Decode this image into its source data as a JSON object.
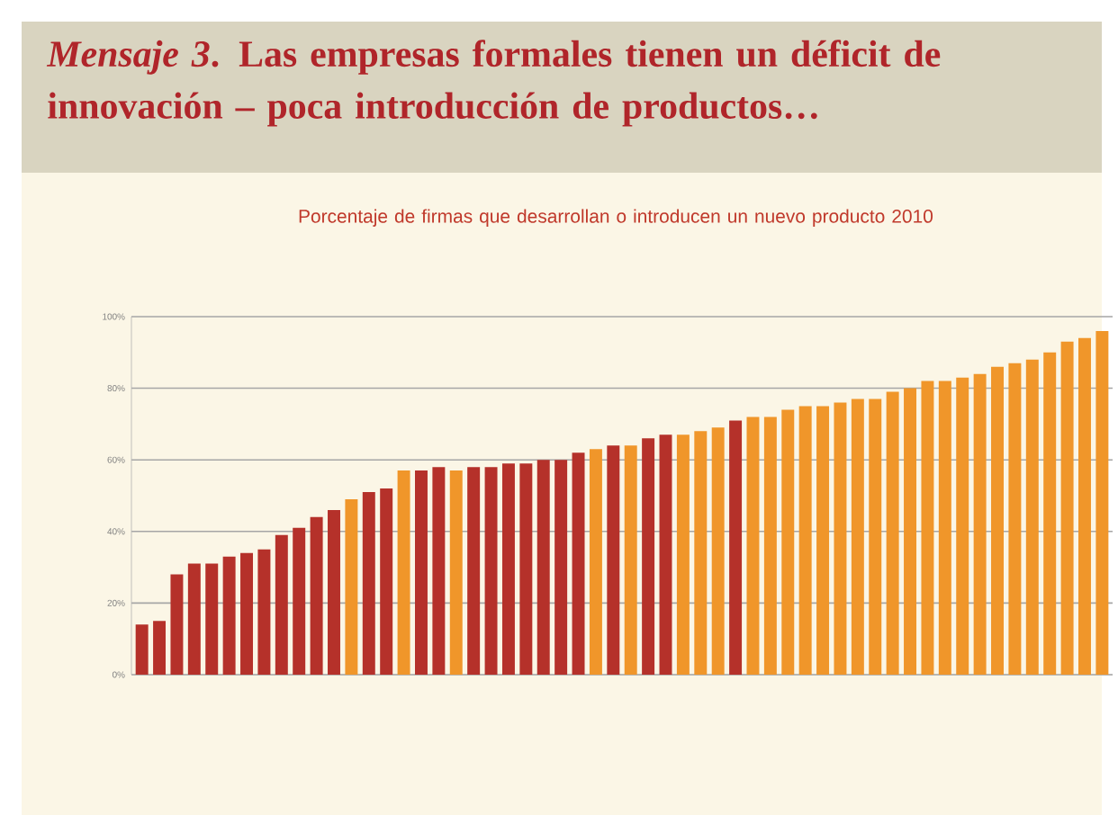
{
  "chart_data": {
    "type": "bar",
    "title": "*Mensaje 3*. Las empresas formales tienen un déficit de innovación – poca introducción de productos…",
    "subtitle": "Porcentaje de firmas que desarrollan o introducen un nuevo producto 2010",
    "categories": [
      null,
      null,
      null,
      null,
      null,
      null,
      null,
      null,
      null,
      null,
      null,
      null,
      null,
      null,
      null,
      null,
      null,
      null,
      null,
      null,
      null,
      null,
      null,
      null,
      null,
      null,
      null,
      null,
      null,
      null,
      null,
      null,
      null,
      null,
      null,
      null,
      null,
      null,
      null,
      null,
      null,
      null,
      null,
      null,
      null,
      null,
      null,
      null,
      null,
      null,
      null,
      null,
      null,
      null,
      null,
      null
    ],
    "values": [
      14,
      15,
      28,
      31,
      31,
      33,
      34,
      35,
      39,
      41,
      44,
      46,
      49,
      51,
      52,
      57,
      57,
      58,
      57,
      58,
      58,
      59,
      59,
      60,
      60,
      62,
      63,
      64,
      64,
      66,
      67,
      67,
      68,
      69,
      71,
      72,
      72,
      74,
      75,
      75,
      76,
      77,
      77,
      79,
      80,
      82,
      82,
      83,
      84,
      86,
      87,
      88,
      90,
      93,
      94,
      96
    ],
    "colors": [
      "#b5312a",
      "#b5312a",
      "#b5312a",
      "#b5312a",
      "#b5312a",
      "#b5312a",
      "#b5312a",
      "#b5312a",
      "#b5312a",
      "#b5312a",
      "#b5312a",
      "#b5312a",
      "#f0962a",
      "#b5312a",
      "#b5312a",
      "#f0962a",
      "#b5312a",
      "#b5312a",
      "#f0962a",
      "#b5312a",
      "#b5312a",
      "#b5312a",
      "#b5312a",
      "#b5312a",
      "#b5312a",
      "#b5312a",
      "#f0962a",
      "#b5312a",
      "#f0962a",
      "#b5312a",
      "#b5312a",
      "#f0962a",
      "#f0962a",
      "#f0962a",
      "#b5312a",
      "#f0962a",
      "#f0962a",
      "#f0962a",
      "#f0962a",
      "#f0962a",
      "#f0962a",
      "#f0962a",
      "#f0962a",
      "#f0962a",
      "#f0962a",
      "#f0962a",
      "#f0962a",
      "#f0962a",
      "#f0962a",
      "#f0962a",
      "#f0962a",
      "#f0962a",
      "#f0962a",
      "#f0962a",
      "#f0962a",
      "#f0962a"
    ],
    "ylim": [
      0,
      100
    ],
    "yticks": [
      {
        "value": 0,
        "label": "0%"
      },
      {
        "value": 20,
        "label": "20%"
      },
      {
        "value": 40,
        "label": "40%"
      },
      {
        "value": 60,
        "label": "60%"
      },
      {
        "value": 80,
        "label": "80%"
      },
      {
        "value": 100,
        "label": "100%"
      }
    ],
    "grid": "y"
  }
}
